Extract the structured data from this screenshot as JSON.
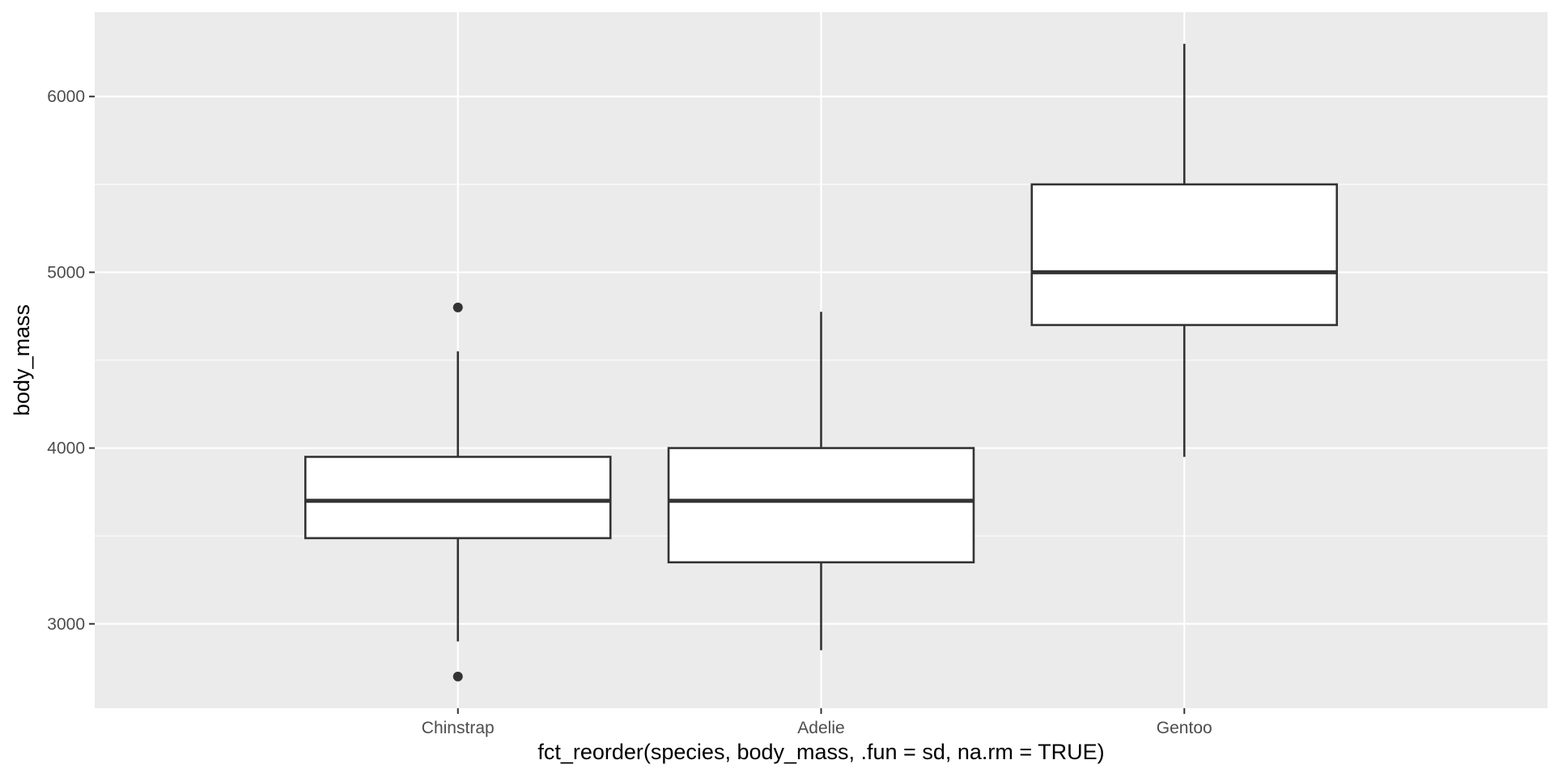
{
  "chart_data": {
    "type": "boxplot",
    "xlabel": "fct_reorder(species, body_mass, .fun = sd, na.rm = TRUE)",
    "ylabel": "body_mass",
    "categories": [
      "Chinstrap",
      "Adelie",
      "Gentoo"
    ],
    "boxes": [
      {
        "category": "Chinstrap",
        "whisker_low": 2900,
        "q1": 3487.5,
        "median": 3700,
        "q3": 3950,
        "whisker_high": 4550,
        "outliers": [
          2700,
          4800
        ]
      },
      {
        "category": "Adelie",
        "whisker_low": 2850,
        "q1": 3350,
        "median": 3700,
        "q3": 4000,
        "whisker_high": 4775,
        "outliers": []
      },
      {
        "category": "Gentoo",
        "whisker_low": 3950,
        "q1": 4700,
        "median": 5000,
        "q3": 5500,
        "whisker_high": 6300,
        "outliers": []
      }
    ],
    "ylim": [
      2520,
      6480
    ],
    "yticks": [
      3000,
      4000,
      5000,
      6000
    ],
    "ytick_labels": [
      "3000",
      "4000",
      "5000",
      "6000"
    ],
    "grid": true,
    "legend": "none",
    "colors": {
      "panel_background": "#ebebeb",
      "gridline": "#ffffff",
      "box_fill": "#ffffff",
      "box_stroke": "#333333",
      "tick_label": "#4d4d4d",
      "axis_title": "#000000"
    }
  }
}
